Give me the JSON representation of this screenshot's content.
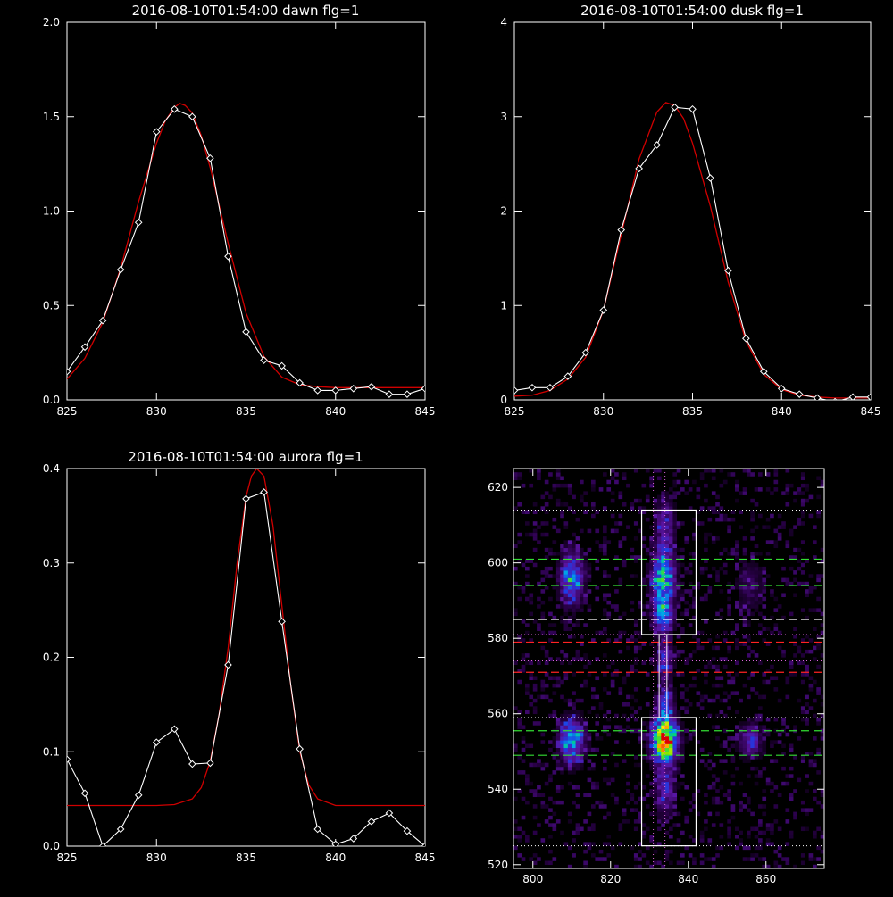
{
  "colors": {
    "background": "#000000",
    "axes": "#ffffff",
    "data_line": "#ffffff",
    "fit_line": "#d00000",
    "green_guides": "#33dd33",
    "red_guides": "#ff2222",
    "white_guides": "#ffffff",
    "magenta_guides": "#dd66dd"
  },
  "chart_data": [
    {
      "id": "dawn",
      "type": "line",
      "title": "2016-08-10T01:54:00 dawn flg=1",
      "xlabel": "",
      "ylabel": "",
      "xlim": [
        825,
        845
      ],
      "ylim": [
        0,
        2.0
      ],
      "xticks": [
        825,
        830,
        835,
        840,
        845
      ],
      "xtick_labels": [
        "825",
        "830",
        "835",
        "840",
        "845"
      ],
      "yticks": [
        0,
        0.5,
        1.0,
        1.5,
        2.0
      ],
      "ytick_labels": [
        "0.0",
        "0.5",
        "1.0",
        "1.5",
        "2.0"
      ],
      "grid": false,
      "series": [
        {
          "style": "data",
          "x": [
            825,
            826,
            827,
            828,
            829,
            830,
            831,
            832,
            833,
            834,
            835,
            836,
            837,
            838,
            839,
            840,
            841,
            842,
            843,
            844,
            845
          ],
          "y": [
            0.15,
            0.28,
            0.42,
            0.69,
            0.94,
            1.42,
            1.54,
            1.5,
            1.28,
            0.76,
            0.36,
            0.21,
            0.18,
            0.09,
            0.05,
            0.05,
            0.06,
            0.07,
            0.03,
            0.03,
            0.06
          ]
        },
        {
          "style": "fit",
          "x": [
            825,
            826,
            827,
            828,
            829,
            830,
            830.5,
            831,
            831.3,
            831.6,
            832,
            832.5,
            833,
            834,
            835,
            836,
            837,
            838,
            839,
            840,
            841,
            842,
            843,
            844,
            845
          ],
          "y": [
            0.11,
            0.22,
            0.41,
            0.7,
            1.05,
            1.36,
            1.48,
            1.55,
            1.57,
            1.56,
            1.52,
            1.4,
            1.23,
            0.83,
            0.46,
            0.23,
            0.12,
            0.08,
            0.07,
            0.065,
            0.065,
            0.065,
            0.065,
            0.065,
            0.065
          ]
        }
      ]
    },
    {
      "id": "dusk",
      "type": "line",
      "title": "2016-08-10T01:54:00 dusk flg=1",
      "xlabel": "",
      "ylabel": "",
      "xlim": [
        825,
        845
      ],
      "ylim": [
        0,
        4
      ],
      "xticks": [
        825,
        830,
        835,
        840,
        845
      ],
      "xtick_labels": [
        "825",
        "830",
        "835",
        "840",
        "845"
      ],
      "yticks": [
        0,
        1,
        2,
        3,
        4
      ],
      "ytick_labels": [
        "0",
        "1",
        "2",
        "3",
        "4"
      ],
      "grid": false,
      "series": [
        {
          "style": "data",
          "x": [
            825,
            826,
            827,
            828,
            829,
            830,
            831,
            832,
            833,
            834,
            835,
            836,
            837,
            838,
            839,
            840,
            841,
            842,
            843,
            844,
            845
          ],
          "y": [
            0.1,
            0.13,
            0.13,
            0.25,
            0.5,
            0.95,
            1.8,
            2.45,
            2.7,
            3.1,
            3.08,
            2.35,
            1.37,
            0.65,
            0.3,
            0.12,
            0.06,
            0.02,
            -0.02,
            0.03,
            0.03
          ]
        },
        {
          "style": "fit",
          "x": [
            825,
            826,
            827,
            828,
            829,
            830,
            831,
            832,
            833,
            833.5,
            834,
            834.5,
            835,
            836,
            837,
            838,
            839,
            840,
            841,
            842,
            843,
            844,
            845
          ],
          "y": [
            0.04,
            0.05,
            0.1,
            0.22,
            0.45,
            0.95,
            1.75,
            2.55,
            3.05,
            3.15,
            3.12,
            2.98,
            2.72,
            2.05,
            1.25,
            0.62,
            0.27,
            0.11,
            0.05,
            0.03,
            0.02,
            0.02,
            0.02
          ]
        }
      ]
    },
    {
      "id": "aurora",
      "type": "line",
      "title": "2016-08-10T01:54:00 aurora flg=1",
      "xlabel": "",
      "ylabel": "",
      "xlim": [
        825,
        845
      ],
      "ylim": [
        0,
        0.4
      ],
      "xticks": [
        825,
        830,
        835,
        840,
        845
      ],
      "xtick_labels": [
        "825",
        "830",
        "835",
        "840",
        "845"
      ],
      "yticks": [
        0,
        0.1,
        0.2,
        0.3,
        0.4
      ],
      "ytick_labels": [
        "0.0",
        "0.1",
        "0.2",
        "0.3",
        "0.4"
      ],
      "grid": false,
      "series": [
        {
          "style": "data",
          "x": [
            825,
            826,
            827,
            828,
            829,
            830,
            831,
            832,
            833,
            834,
            835,
            836,
            837,
            838,
            839,
            840,
            841,
            842,
            843,
            844,
            845
          ],
          "y": [
            0.092,
            0.056,
            0.0,
            0.018,
            0.054,
            0.11,
            0.124,
            0.087,
            0.088,
            0.192,
            0.368,
            0.375,
            0.238,
            0.103,
            0.018,
            0.002,
            0.008,
            0.026,
            0.035,
            0.016,
            0.0
          ]
        },
        {
          "style": "fit",
          "x": [
            825,
            826,
            827,
            828,
            829,
            830,
            831,
            832,
            832.5,
            833,
            833.5,
            834,
            834.5,
            835,
            835.3,
            835.6,
            836,
            836.5,
            837,
            837.5,
            838,
            838.5,
            839,
            840,
            841,
            842,
            843,
            844,
            845
          ],
          "y": [
            0.043,
            0.043,
            0.043,
            0.043,
            0.043,
            0.043,
            0.044,
            0.05,
            0.062,
            0.09,
            0.14,
            0.21,
            0.3,
            0.37,
            0.392,
            0.4,
            0.392,
            0.34,
            0.255,
            0.17,
            0.1,
            0.065,
            0.05,
            0.043,
            0.043,
            0.043,
            0.043,
            0.043,
            0.043
          ]
        }
      ]
    },
    {
      "id": "image",
      "type": "heatmap",
      "title": "",
      "xlabel": "",
      "ylabel": "",
      "xlim": [
        795,
        875
      ],
      "ylim": [
        519,
        625
      ],
      "xticks": [
        800,
        820,
        840,
        860
      ],
      "xtick_labels": [
        "800",
        "820",
        "840",
        "860"
      ],
      "yticks": [
        520,
        540,
        560,
        580,
        600,
        620
      ],
      "ytick_labels": [
        "520",
        "540",
        "560",
        "580",
        "600",
        "620"
      ],
      "grid": false,
      "blobs": [
        {
          "x": 810,
          "y": 596,
          "sx": 2.2,
          "sy": 5,
          "v": 0.42
        },
        {
          "x": 810,
          "y": 553,
          "sx": 2.2,
          "sy": 4,
          "v": 0.48
        },
        {
          "x": 833.5,
          "y": 596,
          "sx": 2.0,
          "sy": 5,
          "v": 0.55
        },
        {
          "x": 833.5,
          "y": 586,
          "sx": 1.8,
          "sy": 3,
          "v": 0.42
        },
        {
          "x": 834,
          "y": 553,
          "sx": 2.2,
          "sy": 3.5,
          "v": 1.0
        },
        {
          "x": 834,
          "y": 562,
          "sx": 1.5,
          "sy": 3,
          "v": 0.35
        },
        {
          "x": 834,
          "y": 574,
          "sx": 1.5,
          "sy": 4,
          "v": 0.28
        },
        {
          "x": 834,
          "y": 540,
          "sx": 1.8,
          "sy": 5,
          "v": 0.28
        },
        {
          "x": 834,
          "y": 610,
          "sx": 1.8,
          "sy": 5,
          "v": 0.25
        },
        {
          "x": 856,
          "y": 553,
          "sx": 2.0,
          "sy": 3,
          "v": 0.3
        },
        {
          "x": 856,
          "y": 594,
          "sx": 2.5,
          "sy": 5,
          "v": 0.15
        }
      ],
      "boxes": [
        {
          "x0": 828,
          "x1": 842,
          "y0": 581,
          "y1": 614
        },
        {
          "x0": 828,
          "x1": 842,
          "y0": 525,
          "y1": 559
        }
      ],
      "connector_x": [
        832.5,
        834.5
      ],
      "connector_y": [
        559,
        581
      ],
      "green_lines": [
        601,
        594,
        555.5,
        549
      ],
      "red_lines": [
        579,
        571
      ],
      "white_dashed_lines": [
        585
      ],
      "white_dotted_lines": [
        614,
        559,
        525
      ],
      "magenta_dotted_hlines": [
        581,
        574
      ],
      "magenta_dotted_vlines": [
        831,
        834
      ]
    }
  ]
}
